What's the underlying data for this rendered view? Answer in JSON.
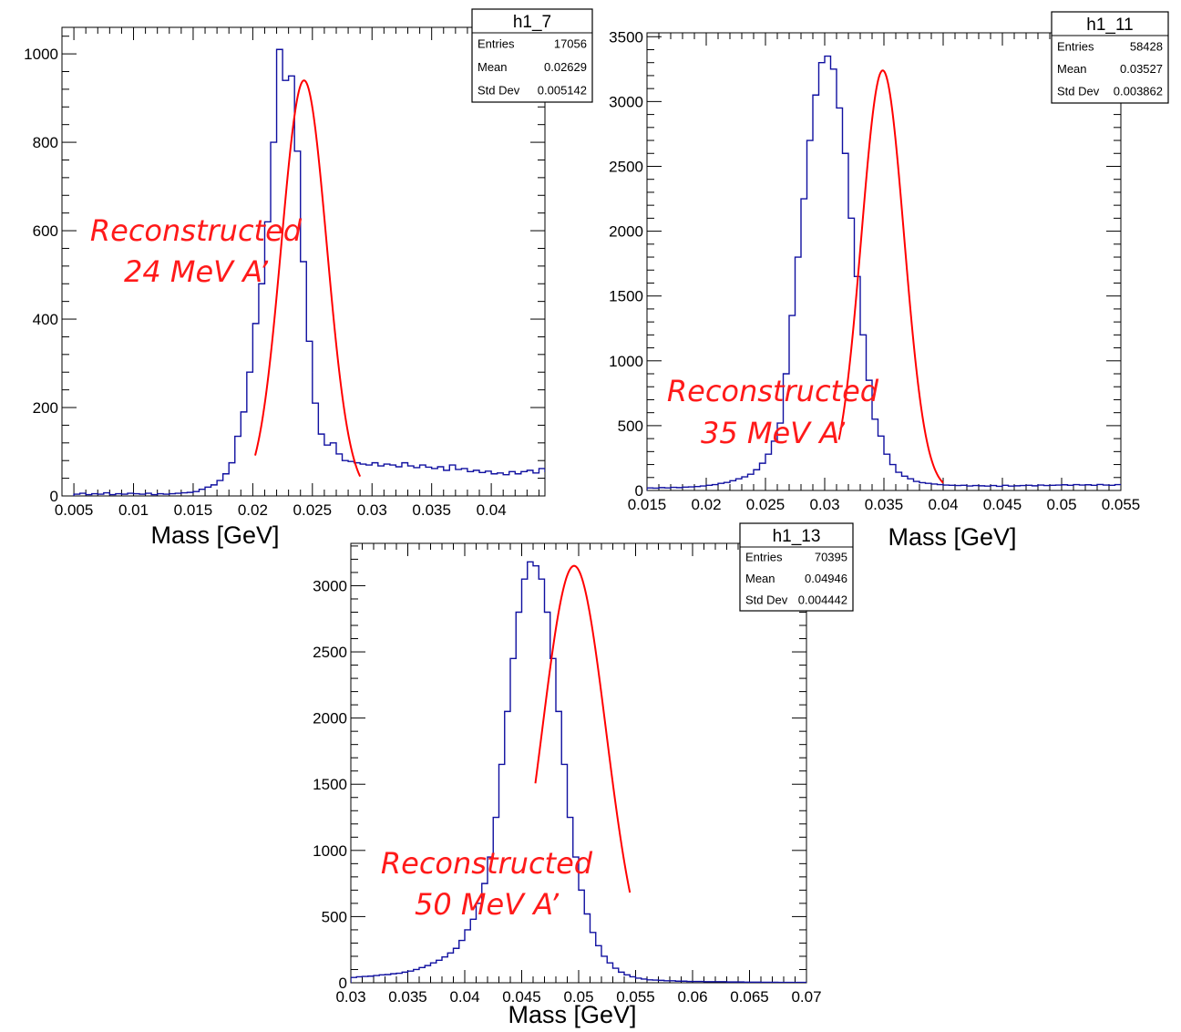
{
  "chart_data": [
    {
      "type": "histogram",
      "xlabel": "Mass [GeV]",
      "xlim": [
        0.004,
        0.0445
      ],
      "ylim": [
        0,
        1060
      ],
      "xticks": [
        0.005,
        0.01,
        0.015,
        0.02,
        0.025,
        0.03,
        0.035,
        0.04
      ],
      "xtick_labels": [
        "0.005",
        "0.01",
        "0.015",
        "0.02",
        "0.025",
        "0.03",
        "0.035",
        "0.04"
      ],
      "yticks": [
        0,
        200,
        400,
        600,
        800,
        1000
      ],
      "ytick_labels": [
        "0",
        "200",
        "400",
        "600",
        "800",
        "1000"
      ],
      "annotation": [
        "Reconstructed",
        "24 MeV A’"
      ],
      "stats": {
        "name": "h1_7",
        "rows": [
          {
            "label": "Entries",
            "value": "17056"
          },
          {
            "label": "Mean",
            "value": "0.02629"
          },
          {
            "label": "Std Dev",
            "value": "0.005142"
          }
        ]
      },
      "bins": {
        "start": 0.005,
        "width": 0.0005,
        "counts": [
          4,
          6,
          3,
          5,
          4,
          7,
          3,
          5,
          4,
          6,
          5,
          4,
          6,
          3,
          5,
          4,
          5,
          6,
          7,
          8,
          10,
          15,
          20,
          25,
          35,
          50,
          75,
          135,
          190,
          280,
          390,
          480,
          620,
          800,
          1010,
          940,
          950,
          780,
          530,
          350,
          210,
          140,
          115,
          120,
          95,
          80,
          78,
          75,
          72,
          70,
          75,
          68,
          72,
          70,
          66,
          75,
          68,
          64,
          70,
          65,
          62,
          66,
          58,
          70,
          60,
          62,
          55,
          58,
          53,
          56,
          50,
          52,
          48,
          55,
          50,
          55,
          58,
          52,
          62,
          55,
          50
        ]
      },
      "fit": {
        "mean": 0.0243,
        "sigma": 0.0019,
        "amplitude": 940,
        "range": [
          0.0202,
          0.029
        ]
      },
      "line_color": "#1010a0",
      "fit_color": "#ff0000"
    },
    {
      "type": "histogram",
      "xlabel": "Mass [GeV]",
      "xlim": [
        0.015,
        0.055
      ],
      "ylim": [
        0,
        3530
      ],
      "xticks": [
        0.015,
        0.02,
        0.025,
        0.03,
        0.035,
        0.04,
        0.045,
        0.05,
        0.055
      ],
      "xtick_labels": [
        "0.015",
        "0.02",
        "0.025",
        "0.03",
        "0.035",
        "0.04",
        "0.045",
        "0.05",
        "0.055"
      ],
      "yticks": [
        0,
        500,
        1000,
        1500,
        2000,
        2500,
        3000,
        3500
      ],
      "ytick_labels": [
        "0",
        "500",
        "1000",
        "1500",
        "2000",
        "2500",
        "3000",
        "3500"
      ],
      "annotation": [
        "Reconstructed",
        "35 MeV A’"
      ],
      "stats": {
        "name": "h1_11",
        "rows": [
          {
            "label": "Entries",
            "value": "58428"
          },
          {
            "label": "Mean",
            "value": "0.03527"
          },
          {
            "label": "Std Dev",
            "value": "0.003862"
          }
        ]
      },
      "bins": {
        "start": 0.015,
        "width": 0.0005,
        "counts": [
          20,
          18,
          22,
          20,
          24,
          22,
          26,
          28,
          30,
          35,
          40,
          45,
          55,
          62,
          75,
          90,
          105,
          125,
          160,
          210,
          280,
          380,
          520,
          900,
          1350,
          1800,
          2250,
          2700,
          3050,
          3300,
          3350,
          3250,
          2950,
          2600,
          2100,
          1650,
          1200,
          850,
          550,
          420,
          280,
          200,
          140,
          110,
          90,
          70,
          60,
          55,
          50,
          45,
          42,
          40,
          38,
          40,
          35,
          38,
          36,
          34,
          38,
          32,
          40,
          34,
          36,
          38,
          40,
          36,
          42,
          38,
          40,
          42,
          44,
          40,
          45,
          42,
          44,
          40,
          46,
          42,
          40,
          45
        ]
      },
      "fit": {
        "mean": 0.0349,
        "sigma": 0.0018,
        "amplitude": 3240,
        "range": [
          0.0312,
          0.04
        ]
      },
      "line_color": "#1010a0",
      "fit_color": "#ff0000"
    },
    {
      "type": "histogram",
      "xlabel": "Mass [GeV]",
      "xlim": [
        0.03,
        0.07
      ],
      "ylim": [
        0,
        3320
      ],
      "xticks": [
        0.03,
        0.035,
        0.04,
        0.045,
        0.05,
        0.055,
        0.06,
        0.065,
        0.07
      ],
      "xtick_labels": [
        "0.03",
        "0.035",
        "0.04",
        "0.045",
        "0.05",
        "0.055",
        "0.06",
        "0.065",
        "0.07"
      ],
      "yticks": [
        0,
        500,
        1000,
        1500,
        2000,
        2500,
        3000
      ],
      "ytick_labels": [
        "0",
        "500",
        "1000",
        "1500",
        "2000",
        "2500",
        "3000"
      ],
      "annotation": [
        "Reconstructed",
        "50 MeV A’"
      ],
      "stats": {
        "name": "h1_13",
        "rows": [
          {
            "label": "Entries",
            "value": "70395"
          },
          {
            "label": "Mean",
            "value": "0.04946"
          },
          {
            "label": "Std Dev",
            "value": "0.004442"
          }
        ]
      },
      "bins": {
        "start": 0.03,
        "width": 0.0005,
        "counts": [
          40,
          45,
          48,
          50,
          55,
          60,
          62,
          68,
          72,
          80,
          88,
          100,
          115,
          130,
          150,
          170,
          195,
          225,
          260,
          320,
          400,
          480,
          600,
          750,
          950,
          1250,
          1650,
          2050,
          2450,
          2800,
          3050,
          3180,
          3150,
          3050,
          2800,
          2450,
          2050,
          1650,
          1250,
          950,
          700,
          520,
          380,
          280,
          200,
          150,
          110,
          80,
          60,
          45,
          35,
          28,
          22,
          20,
          18,
          15,
          15,
          12,
          12,
          10,
          10,
          10,
          8,
          8,
          8,
          8,
          6,
          6,
          6,
          5,
          5,
          5,
          4,
          4,
          4,
          3,
          3,
          3,
          3,
          3
        ]
      },
      "fit": {
        "mean": 0.0496,
        "sigma": 0.0028,
        "amplitude": 3150,
        "range": [
          0.0462,
          0.0545
        ]
      },
      "line_color": "#1010a0",
      "fit_color": "#ff0000"
    }
  ]
}
